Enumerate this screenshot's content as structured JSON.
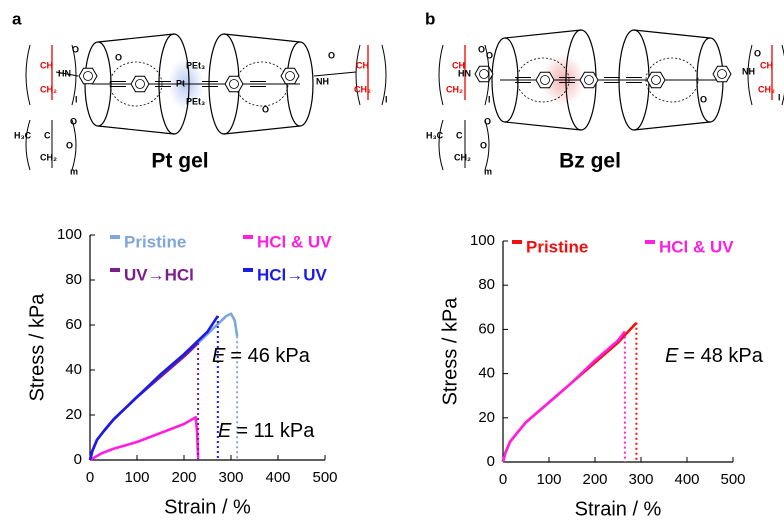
{
  "panels": [
    {
      "label": "a",
      "name": "Pt gel",
      "structure_labels": [
        "O",
        "HN",
        "CH",
        "CH₂",
        "l",
        "H₃C",
        "C",
        "O",
        "O",
        "CH₂",
        "m",
        "O",
        "PEt₃",
        "Pt",
        "PEt₃",
        "O",
        "NH",
        "O",
        "CH",
        "CH₂",
        "l"
      ]
    },
    {
      "label": "b",
      "name": "Bz gel",
      "structure_labels": [
        "O",
        "HN",
        "CH",
        "CH₂",
        "l",
        "H₃C",
        "C",
        "O",
        "O",
        "CH₂",
        "m",
        "O",
        "O",
        "NH",
        "O",
        "CH",
        "CH₂",
        "l"
      ]
    }
  ],
  "chart_data": [
    {
      "type": "line",
      "xlabel": "Strain / %",
      "ylabel": "Stress / kPa",
      "xlim": [
        0,
        500
      ],
      "xticks": [
        0,
        100,
        200,
        300,
        400,
        500
      ],
      "ylim": [
        0,
        100
      ],
      "yticks": [
        0,
        20,
        40,
        60,
        80,
        100
      ],
      "legend": "top",
      "legend_columns": 2,
      "series": [
        {
          "name": "Pristine",
          "color": "#7fa6dc",
          "x": [
            0,
            5,
            15,
            30,
            50,
            100,
            150,
            200,
            250,
            290,
            300,
            308,
            313
          ],
          "values": [
            0,
            4,
            9,
            13,
            18,
            28,
            37,
            46,
            56,
            64,
            65,
            62,
            55
          ]
        },
        {
          "name": "HCl & UV",
          "color": "#ff1fe0",
          "x": [
            0,
            25,
            50,
            100,
            150,
            200,
            225,
            228,
            230
          ],
          "values": [
            0,
            3,
            5,
            8,
            12,
            16,
            19,
            12,
            1
          ]
        },
        {
          "name": "UV→HCl",
          "color": "#7b1d8a",
          "x": [
            0,
            5,
            15,
            30,
            50,
            100,
            150,
            200,
            230
          ],
          "values": [
            0,
            4,
            9,
            13,
            18,
            28,
            37,
            46,
            52
          ]
        },
        {
          "name": "HCl→UV",
          "color": "#1c1ce6",
          "x": [
            0,
            5,
            15,
            30,
            50,
            100,
            150,
            200,
            250,
            272
          ],
          "values": [
            0,
            4,
            9,
            13,
            18,
            28,
            38,
            47,
            57,
            64
          ]
        }
      ],
      "annotations": [
        [
          "E",
          "= 46 kPa"
        ],
        [
          "E",
          "= 11 kPa"
        ]
      ]
    },
    {
      "type": "line",
      "xlabel": "Strain / %",
      "ylabel": "Stress / kPa",
      "xlim": [
        0,
        500
      ],
      "xticks": [
        0,
        100,
        200,
        300,
        400,
        500
      ],
      "ylim": [
        0,
        100
      ],
      "yticks": [
        0,
        20,
        40,
        60,
        80,
        100
      ],
      "legend": "top",
      "legend_columns": 2,
      "series": [
        {
          "name": "Pristine",
          "color": "#f01010",
          "x": [
            0,
            5,
            15,
            30,
            50,
            100,
            150,
            200,
            250,
            290
          ],
          "values": [
            0,
            4,
            9,
            13,
            18,
            27,
            36,
            45,
            54,
            63
          ]
        },
        {
          "name": "HCl & UV",
          "color": "#ff1fe0",
          "x": [
            0,
            5,
            15,
            30,
            50,
            100,
            150,
            200,
            250,
            265
          ],
          "values": [
            0,
            4,
            9,
            13,
            18,
            27,
            36,
            46,
            55,
            59
          ]
        }
      ],
      "annotations": [
        [
          "E",
          "= 48 kPa"
        ]
      ]
    }
  ]
}
